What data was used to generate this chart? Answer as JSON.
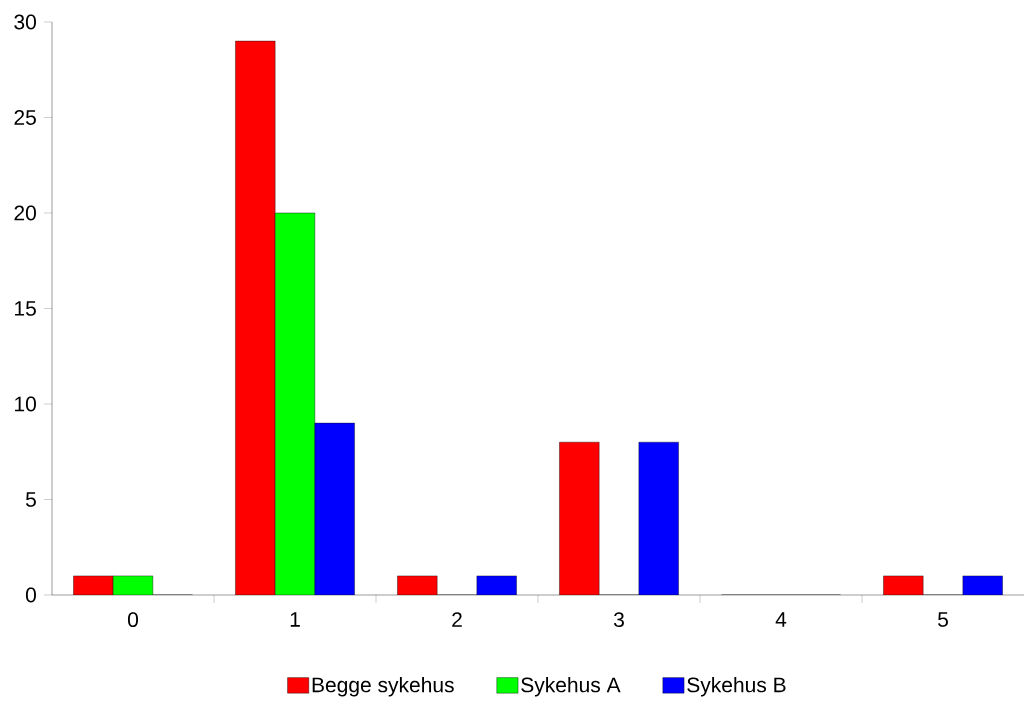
{
  "chart_data": {
    "type": "bar",
    "categories": [
      "0",
      "1",
      "2",
      "3",
      "4",
      "5"
    ],
    "series": [
      {
        "name": "Begge sykehus",
        "color": "#ff0000",
        "values": [
          1,
          29,
          1,
          8,
          0,
          1
        ]
      },
      {
        "name": "Sykehus A",
        "color": "#00ff00",
        "values": [
          1,
          20,
          0,
          0,
          0,
          0
        ]
      },
      {
        "name": "Sykehus B",
        "color": "#0000ff",
        "values": [
          0,
          9,
          1,
          8,
          0,
          1
        ]
      }
    ],
    "ylim": [
      0,
      30
    ],
    "yticks": [
      0,
      5,
      10,
      15,
      20,
      25,
      30
    ],
    "grid": false,
    "legend": "bottom"
  }
}
